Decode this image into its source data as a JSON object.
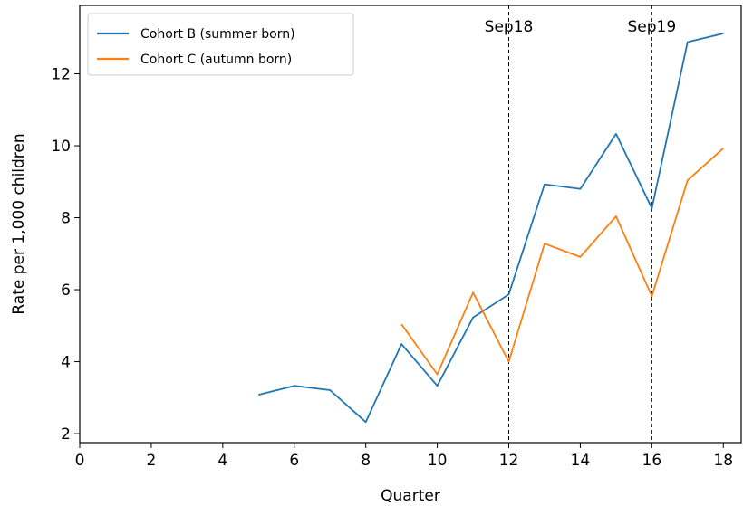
{
  "chart_data": {
    "type": "line",
    "title": "",
    "xlabel": "Quarter",
    "ylabel": "Rate per 1,000 children",
    "xlim": [
      0,
      18.5
    ],
    "ylim": [
      1.75,
      13.9
    ],
    "xticks": [
      0,
      2,
      4,
      6,
      8,
      10,
      12,
      14,
      16,
      18
    ],
    "yticks": [
      2,
      4,
      6,
      8,
      10,
      12
    ],
    "grid": false,
    "legend_position": "upper-left",
    "series": [
      {
        "name": "Cohort B (summer born)",
        "color": "#1f77b4",
        "x": [
          5,
          6,
          7,
          8,
          9,
          10,
          11,
          12,
          13,
          14,
          15,
          16,
          17,
          18
        ],
        "y": [
          3.08,
          3.33,
          3.21,
          2.32,
          4.49,
          3.33,
          5.23,
          5.87,
          8.93,
          8.8,
          10.33,
          8.26,
          12.88,
          13.12
        ]
      },
      {
        "name": "Cohort C (autumn born)",
        "color": "#ff7f0e",
        "x": [
          9,
          10,
          11,
          12,
          13,
          14,
          15,
          16,
          17,
          18
        ],
        "y": [
          5.04,
          3.65,
          5.92,
          4.0,
          7.28,
          6.91,
          8.04,
          5.82,
          9.04,
          9.93
        ]
      }
    ],
    "vlines": [
      {
        "x": 12,
        "label": "Sep18"
      },
      {
        "x": 16,
        "label": "Sep19"
      }
    ]
  }
}
